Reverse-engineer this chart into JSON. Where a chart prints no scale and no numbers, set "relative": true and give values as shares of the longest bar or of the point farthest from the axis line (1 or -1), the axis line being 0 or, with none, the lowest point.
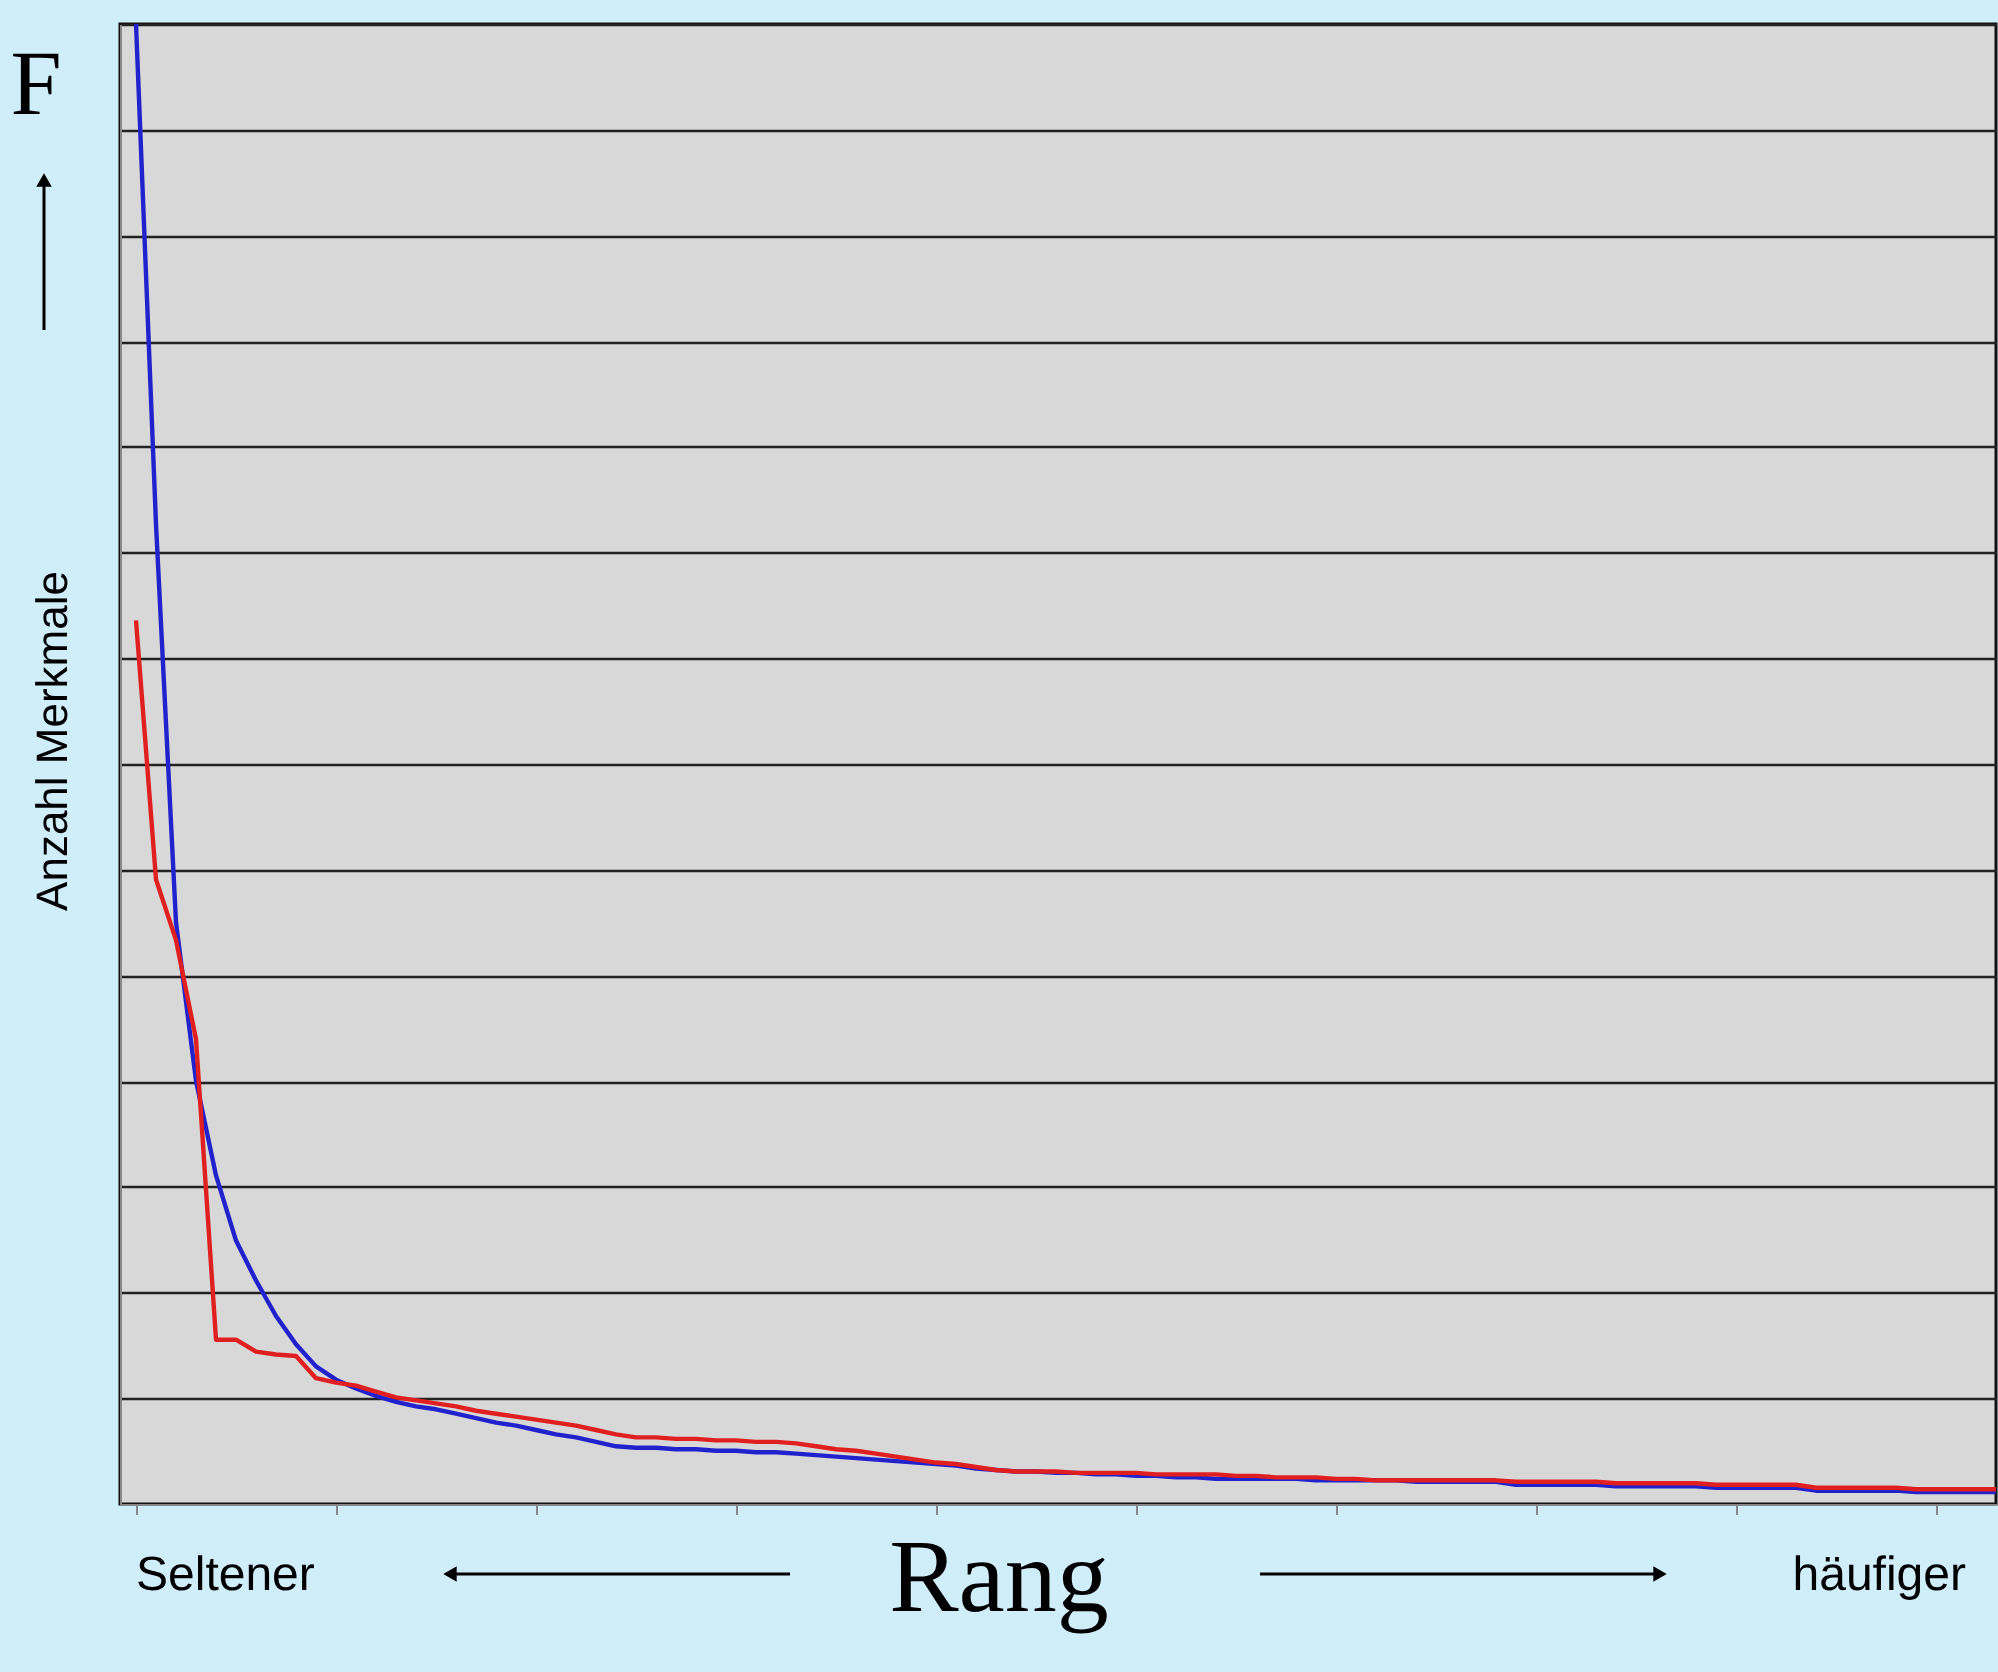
{
  "chart_data": {
    "type": "line",
    "relative": true,
    "xlabel": "Rang",
    "ylabel": "Anzahl Merkmale",
    "grid": "y",
    "line_style": "solid",
    "marker": "none",
    "annotations": [
      "F",
      "Seltener",
      "häufiger"
    ],
    "categories": [
      null,
      null,
      null,
      null,
      null,
      null,
      null,
      null,
      null,
      null,
      null,
      null,
      null,
      null,
      null,
      null,
      null,
      null,
      null,
      null,
      null,
      null,
      null,
      null,
      null,
      null,
      null,
      null,
      null,
      null,
      null,
      null,
      null,
      null,
      null,
      null,
      null,
      null,
      null,
      null,
      null,
      null,
      null,
      null,
      null,
      null,
      null,
      null,
      null,
      null,
      null,
      null,
      null,
      null,
      null,
      null,
      null,
      null,
      null,
      null,
      null,
      null,
      null,
      null,
      null,
      null,
      null,
      null,
      null,
      null,
      null,
      null,
      null,
      null,
      null,
      null,
      null,
      null,
      null,
      null,
      null,
      null,
      null,
      null,
      null,
      null,
      null,
      null,
      null,
      null,
      null,
      null,
      null,
      null
    ],
    "series": [
      {
        "color": "#2222cc",
        "values": [
          1.0,
          0.662,
          0.393,
          0.286,
          0.222,
          0.178,
          0.151,
          0.127,
          0.108,
          0.093,
          0.084,
          0.078,
          0.073,
          0.069,
          0.066,
          0.064,
          0.061,
          0.058,
          0.055,
          0.053,
          0.05,
          0.047,
          0.045,
          0.042,
          0.039,
          0.038,
          0.038,
          0.037,
          0.037,
          0.036,
          0.036,
          0.035,
          0.035,
          0.034,
          0.033,
          0.032,
          0.031,
          0.03,
          0.029,
          0.028,
          0.027,
          0.026,
          0.024,
          0.023,
          0.022,
          0.022,
          0.021,
          0.021,
          0.02,
          0.02,
          0.019,
          0.019,
          0.018,
          0.018,
          0.017,
          0.017,
          0.017,
          0.017,
          0.017,
          0.016,
          0.016,
          0.016,
          0.016,
          0.016,
          0.015,
          0.015,
          0.015,
          0.015,
          0.015,
          0.013,
          0.013,
          0.013,
          0.013,
          0.013,
          0.012,
          0.012,
          0.012,
          0.012,
          0.012,
          0.011,
          0.011,
          0.011,
          0.011,
          0.011,
          0.009,
          0.009,
          0.009,
          0.009,
          0.009,
          0.008,
          0.008,
          0.008,
          0.008,
          0.008
        ]
      },
      {
        "color": "#e02020",
        "values": [
          0.597,
          0.422,
          0.381,
          0.314,
          0.111,
          0.111,
          0.103,
          0.101,
          0.1,
          0.085,
          0.082,
          0.08,
          0.076,
          0.072,
          0.07,
          0.068,
          0.066,
          0.063,
          0.061,
          0.059,
          0.057,
          0.055,
          0.053,
          0.05,
          0.047,
          0.045,
          0.045,
          0.044,
          0.044,
          0.043,
          0.043,
          0.042,
          0.042,
          0.041,
          0.039,
          0.037,
          0.036,
          0.034,
          0.032,
          0.03,
          0.028,
          0.027,
          0.025,
          0.023,
          0.022,
          0.022,
          0.022,
          0.021,
          0.021,
          0.021,
          0.021,
          0.02,
          0.02,
          0.02,
          0.02,
          0.019,
          0.019,
          0.018,
          0.018,
          0.018,
          0.017,
          0.017,
          0.016,
          0.016,
          0.016,
          0.016,
          0.016,
          0.016,
          0.016,
          0.015,
          0.015,
          0.015,
          0.015,
          0.015,
          0.014,
          0.014,
          0.014,
          0.014,
          0.014,
          0.013,
          0.013,
          0.013,
          0.013,
          0.013,
          0.011,
          0.011,
          0.011,
          0.011,
          0.011,
          0.01,
          0.01,
          0.01,
          0.01,
          0.01
        ]
      }
    ]
  }
}
